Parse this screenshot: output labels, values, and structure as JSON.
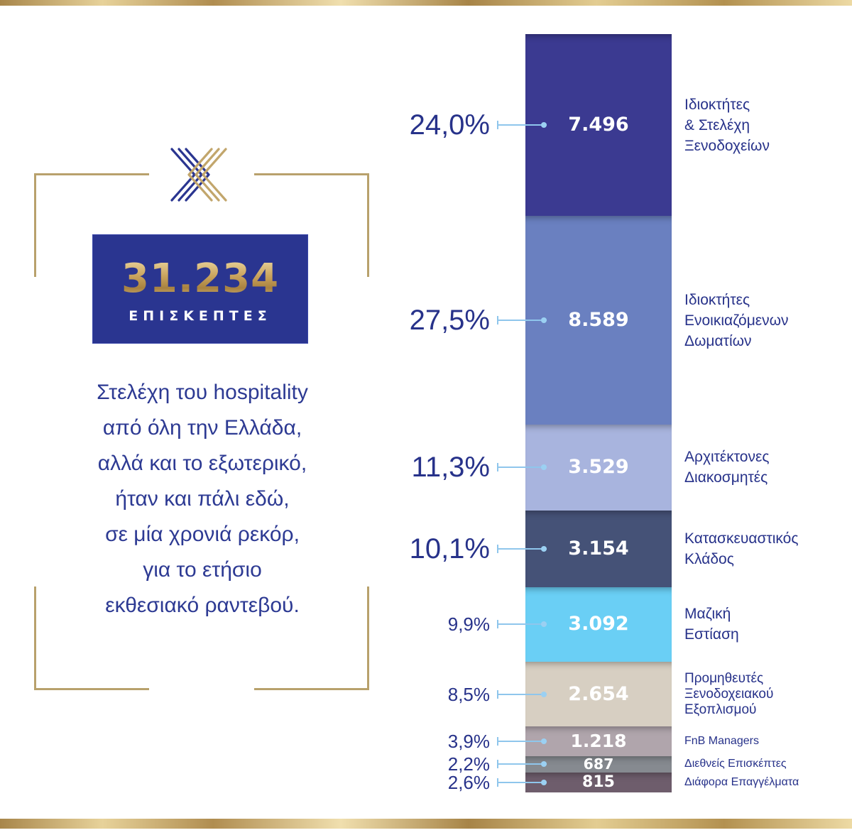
{
  "summary": {
    "total": "31.234",
    "total_label": "ΕΠΙΣΚΕΠΤΕΣ",
    "description_lines": [
      "Στελέχη του hospitality",
      "από όλη την Ελλάδα,",
      "αλλά και το εξωτερικό,",
      "ήταν και πάλι εδώ,",
      "σε μία χρονιά ρεκόρ,",
      "για το ετήσιο",
      "εκθεσιακό ραντεβού."
    ],
    "logo": "x-chevrons-logo"
  },
  "colors": {
    "gold": "#c9a862",
    "navy": "#2a3590",
    "text": "#27328a",
    "connector": "#8fc6ec"
  },
  "chart_data": {
    "type": "bar",
    "subtype": "stacked-single-column",
    "title": "",
    "total": 31234,
    "segments": [
      {
        "label": "Ιδιοκτήτες & Στελέχη Ξενοδοχείων",
        "label_lines": [
          "Ιδιοκτήτες",
          "& Στελέχη",
          "Ξενοδοχείων"
        ],
        "value": 7496,
        "value_label": "7.496",
        "percent": 24.0,
        "percent_label": "24,0%",
        "color": "#3b3a91"
      },
      {
        "label": "Ιδιοκτήτες Ενοικιαζόμενων Δωματίων",
        "label_lines": [
          "Ιδιοκτήτες",
          "Ενοικιαζόμενων",
          "Δωματίων"
        ],
        "value": 8589,
        "value_label": "8.589",
        "percent": 27.5,
        "percent_label": "27,5%",
        "color": "#6a80c0"
      },
      {
        "label": "Αρχιτέκτονες Διακοσμητές",
        "label_lines": [
          "Αρχιτέκτονες",
          "Διακοσμητές"
        ],
        "value": 3529,
        "value_label": "3.529",
        "percent": 11.3,
        "percent_label": "11,3%",
        "color": "#a8b4de"
      },
      {
        "label": "Κατασκευαστικός Κλάδος",
        "label_lines": [
          "Κατασκευαστικός",
          "Κλάδος"
        ],
        "value": 3154,
        "value_label": "3.154",
        "percent": 10.1,
        "percent_label": "10,1%",
        "color": "#455277"
      },
      {
        "label": "Μαζική Εστίαση",
        "label_lines": [
          "Μαζική",
          "Εστίαση"
        ],
        "value": 3092,
        "value_label": "3.092",
        "percent": 9.9,
        "percent_label": "9,9%",
        "color": "#6acff5"
      },
      {
        "label": "Προμηθευτές Ξενοδοχειακού Εξοπλισμού",
        "label_lines": [
          "Προμηθευτές",
          "Ξενοδοχειακού",
          "Εξοπλισμού"
        ],
        "value": 2654,
        "value_label": "2.654",
        "percent": 8.5,
        "percent_label": "8,5%",
        "color": "#d7cfc2"
      },
      {
        "label": "FnB Managers",
        "label_lines": [
          "FnB Managers"
        ],
        "value": 1218,
        "value_label": "1.218",
        "percent": 3.9,
        "percent_label": "3,9%",
        "color": "#b0a5ac"
      },
      {
        "label": "Διεθνείς Επισκέπτες",
        "label_lines": [
          "Διεθνείς Επισκέπτες"
        ],
        "value": 687,
        "value_label": "687",
        "percent": 2.2,
        "percent_label": "2,2%",
        "color": "#868a90"
      },
      {
        "label": "Διάφορα Επαγγέλματα",
        "label_lines": [
          "Διάφορα Επαγγέλματα"
        ],
        "value": 815,
        "value_label": "815",
        "percent": 2.6,
        "percent_label": "2,6%",
        "color": "#6e5d6c"
      }
    ]
  }
}
